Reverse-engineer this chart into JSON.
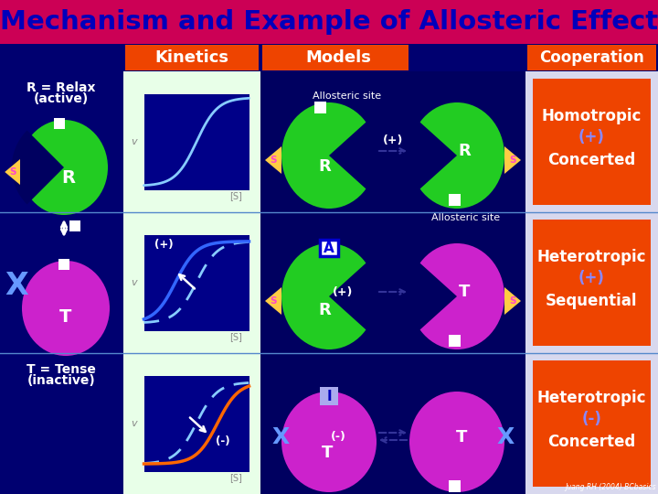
{
  "title": "Mechanism and Example of Allosteric Effect",
  "title_bg": "#CC0055",
  "title_color": "#0000BB",
  "title_fontsize": 21,
  "bg_color": "#000070",
  "col_header_bg": "#EE4400",
  "kinetics_bg": "#E8FFE8",
  "models_bg": "#000088",
  "coop_bg": "#D8D8EE",
  "coop_text_bg": "#EE4400",
  "coop_texts": [
    [
      "Homotropic",
      "(+)",
      "Concerted"
    ],
    [
      "Heterotropic",
      "(+)",
      "Sequential"
    ],
    [
      "Heterotropic",
      "(-)",
      "Concerted"
    ]
  ],
  "green": "#22CC22",
  "magenta": "#CC22CC",
  "dark_blue": "#000060",
  "light_blue_curve": "#88BBFF",
  "orange_curve": "#FF6600",
  "white": "#FFFFFF",
  "S_color": "#FF44CC",
  "S_tri_color": "#FFCC44",
  "X_color": "#6699FF",
  "A_bg": "#FFFFFF",
  "A_color": "#0000DD",
  "I_bg": "#AAAAFF",
  "I_color": "#0000BB",
  "arrow_dashed_color": "#000055",
  "plus_color": "#8888FF",
  "minus_color": "#8888FF"
}
